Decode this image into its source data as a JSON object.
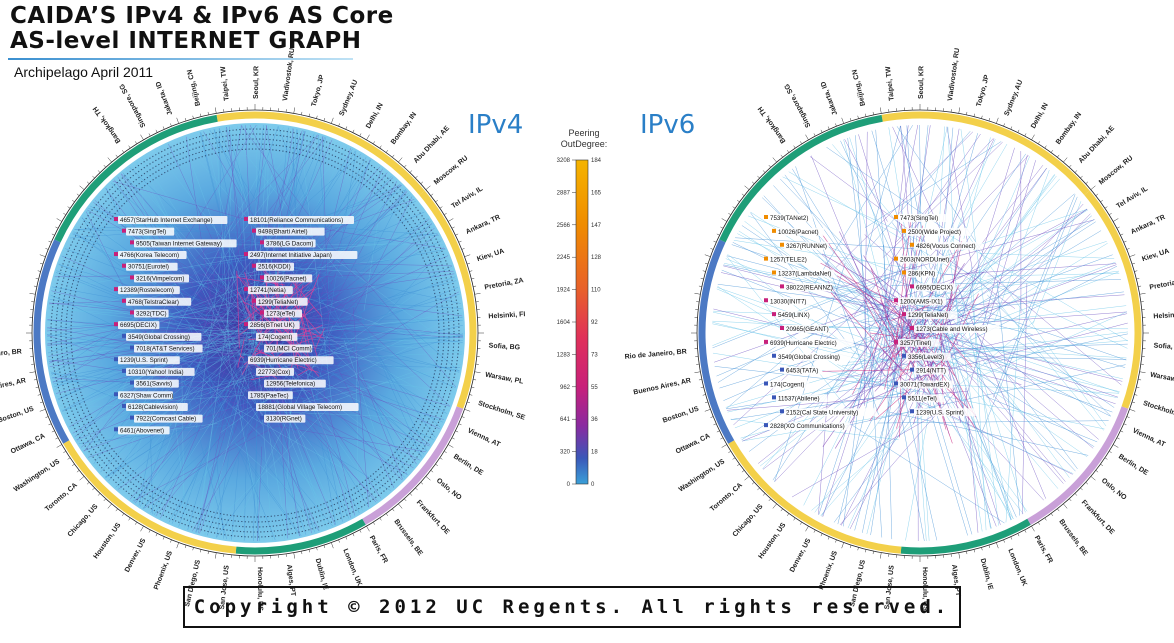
{
  "header": {
    "title_line1": "CAIDA’S IPv4 & IPv6 AS Core",
    "title_line2": "AS-level INTERNET GRAPH",
    "subtitle": "Archipelago April 2011"
  },
  "panels": {
    "ipv4_label": "IPv4",
    "ipv6_label": "IPv6"
  },
  "legend": {
    "title": "Peering OutDegree:",
    "left_ticks": [
      "3208",
      "2887",
      "2566",
      "2245",
      "1924",
      "1604",
      "1283",
      "962",
      "641",
      "320",
      "0"
    ],
    "right_ticks": [
      "184",
      "165",
      "147",
      "128",
      "110",
      "92",
      "73",
      "55",
      "36",
      "18",
      "0"
    ],
    "colors": [
      "#f5b400",
      "#f08c00",
      "#e8602a",
      "#e0305a",
      "#c8207a",
      "#8a2aa0",
      "#3a57b8",
      "#3aa0d8"
    ]
  },
  "cities_left": [
    "Bangkok, TH",
    "Singapore, SG",
    "Jakarta, ID",
    "Beijing, CN",
    "Taipei, TW",
    "Seoul, KR",
    "Vladivostok, RU",
    "Tokyo, JP",
    "Sydney, AU",
    "Delhi, IN",
    "Bombay, IN",
    "Abu Dhabi, AE",
    "Moscow, RU",
    "Tel Aviv, IL",
    "Ankara, TR",
    "Kiev, UA",
    "Pretoria, ZA",
    "Helsinki, FI",
    "Sofia, BG",
    "Warsaw, PL",
    "Stockholm, SE",
    "Vienna, AT",
    "Berlin, DE",
    "Oslo, NO",
    "Frankfurt, DE",
    "Brussels, BE",
    "Paris, FR",
    "London, UK",
    "Dublin, IE",
    "Alges, PT",
    "Honolulu, US",
    "San Jose, US",
    "San Diego, US",
    "Phoenix, US",
    "Denver, US",
    "Houston, US",
    "Chicago, US",
    "Toronto, CA",
    "Washington, US",
    "Ottawa, CA",
    "Boston, US",
    "Buenos Aires, AR",
    "Rio de Janeiro, BR"
  ],
  "ipv4_nodes": [
    "4657(StarHub Internet Exchange)",
    "18101(Reliance Communications)",
    "7473(SingTel)",
    "9498(Bharti Airtel)",
    "9505(Taiwan Internet Gateway)",
    "3786(LG Dacom)",
    "4766(Korea Telecom)",
    "2497(Internet Initiative Japan)",
    "30751(Eurotel)",
    "2516(KDDI)",
    "3216(Vimpelcom)",
    "10026(Pacnet)",
    "12389(Rostelecom)",
    "12741(Netia)",
    "4768(TelstraClear)",
    "1299(TeliaNet)",
    "3292(TDC)",
    "1273(eTel)",
    "6695(DECIX)",
    "2856(BTnet UK)",
    "3549(Global Crossing)",
    "174(Cogent)",
    "7018(AT&T Services)",
    "701(MCI Comm)",
    "1239(U.S. Sprint)",
    "6939(Hurricane Electric)",
    "10310(Yahoo! India)",
    "22773(Cox)",
    "3561(Savvis)",
    "12956(Telefonica)",
    "6327(Shaw Comm)",
    "1785(PaeTec)",
    "6128(Cablevision)",
    "18881(Global Village Telecom)",
    "7922(Comcast Cable)",
    "3130(RGnet)",
    "6461(Abovenet)"
  ],
  "ipv6_nodes": [
    "7539(TANet2)",
    "7473(SingTel)",
    "10026(Pacnet)",
    "2500(Wide Project)",
    "3267(RUNNet)",
    "4826(Vocus Connect)",
    "1257(TELE2)",
    "2603(NORDUnet)",
    "13237(LambdaNet)",
    "286(KPN)",
    "38022(REANNZ)",
    "6695(DECIX)",
    "13030(INIT7)",
    "1200(AMS-IX1)",
    "5459(LINX)",
    "1299(TeliaNet)",
    "20965(GEANT)",
    "1273(Cable and Wireless)",
    "6939(Hurricane Electric)",
    "3257(Tinet)",
    "3549(Global Crossing)",
    "3356(Level3)",
    "6453(TATA)",
    "2914(NTT)",
    "174(Cogent)",
    "30071(TowardEX)",
    "11537(Abilene)",
    "5511(eTel)",
    "2152(Cal State University)",
    "1239(U.S. Sprint)",
    "2828(XO Communications)"
  ],
  "copyright": "Copyright © 2012 UC Regents. All rights reserved."
}
